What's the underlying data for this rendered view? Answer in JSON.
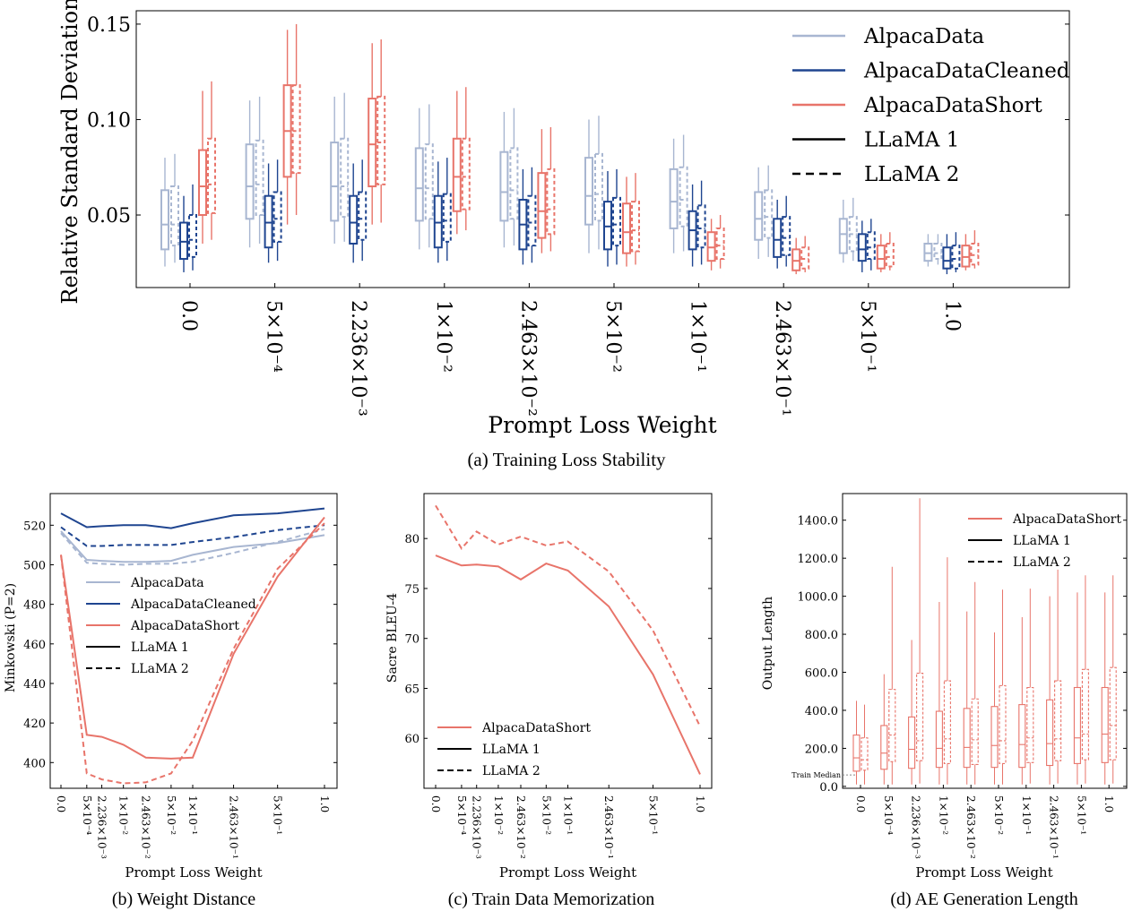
{
  "colors": {
    "AlpacaData": "#a8b6d1",
    "AlpacaDataCleaned": "#1f4590",
    "AlpacaDataShort": "#e8746a",
    "black": "#000000"
  },
  "chart_data": [
    {
      "id": "a",
      "type": "box",
      "caption": "(a) Training Loss Stability",
      "xlabel": "Prompt Loss Weight",
      "ylabel": "Relative Standard Deviation",
      "ylim": [
        0.012,
        0.157
      ],
      "yticks": [
        0.05,
        0.1,
        0.15
      ],
      "ytick_labels": [
        "0.05",
        "0.10",
        "0.15"
      ],
      "categories": [
        "0.0",
        "5×10⁻⁴",
        "2.236×10⁻³",
        "1×10⁻²",
        "2.463×10⁻²",
        "5×10⁻²",
        "1×10⁻¹",
        "2.463×10⁻¹",
        "5×10⁻¹",
        "1.0"
      ],
      "legend": [
        "AlpacaData",
        "AlpacaDataCleaned",
        "AlpacaDataShort",
        "LLaMA 1",
        "LLaMA 2"
      ],
      "series": [
        {
          "dataset": "AlpacaData",
          "model": "LLaMA 1",
          "boxes": [
            [
              0.023,
              0.032,
              0.045,
              0.063,
              0.08
            ],
            [
              0.033,
              0.048,
              0.065,
              0.087,
              0.11
            ],
            [
              0.035,
              0.047,
              0.065,
              0.088,
              0.112
            ],
            [
              0.032,
              0.047,
              0.064,
              0.085,
              0.106
            ],
            [
              0.033,
              0.047,
              0.062,
              0.083,
              0.104
            ],
            [
              0.03,
              0.045,
              0.06,
              0.08,
              0.1
            ],
            [
              0.03,
              0.043,
              0.057,
              0.074,
              0.09
            ],
            [
              0.027,
              0.037,
              0.048,
              0.062,
              0.075
            ],
            [
              0.025,
              0.03,
              0.04,
              0.048,
              0.058
            ],
            [
              0.023,
              0.026,
              0.03,
              0.035,
              0.04
            ]
          ]
        },
        {
          "dataset": "AlpacaData",
          "model": "LLaMA 2",
          "boxes": [
            [
              0.025,
              0.034,
              0.045,
              0.065,
              0.082
            ],
            [
              0.035,
              0.05,
              0.066,
              0.089,
              0.112
            ],
            [
              0.036,
              0.049,
              0.065,
              0.09,
              0.114
            ],
            [
              0.033,
              0.048,
              0.064,
              0.087,
              0.108
            ],
            [
              0.034,
              0.048,
              0.063,
              0.085,
              0.106
            ],
            [
              0.032,
              0.047,
              0.061,
              0.082,
              0.102
            ],
            [
              0.031,
              0.044,
              0.058,
              0.075,
              0.092
            ],
            [
              0.028,
              0.038,
              0.049,
              0.063,
              0.076
            ],
            [
              0.026,
              0.031,
              0.04,
              0.049,
              0.059
            ],
            [
              0.024,
              0.027,
              0.03,
              0.035,
              0.04
            ]
          ]
        },
        {
          "dataset": "AlpacaDataCleaned",
          "model": "LLaMA 1",
          "boxes": [
            [
              0.02,
              0.027,
              0.036,
              0.046,
              0.06
            ],
            [
              0.025,
              0.033,
              0.046,
              0.06,
              0.077
            ],
            [
              0.025,
              0.035,
              0.046,
              0.06,
              0.077
            ],
            [
              0.025,
              0.033,
              0.046,
              0.06,
              0.078
            ],
            [
              0.024,
              0.032,
              0.045,
              0.058,
              0.074
            ],
            [
              0.023,
              0.032,
              0.044,
              0.057,
              0.073
            ],
            [
              0.023,
              0.032,
              0.042,
              0.052,
              0.066
            ],
            [
              0.022,
              0.028,
              0.037,
              0.048,
              0.058
            ],
            [
              0.02,
              0.026,
              0.032,
              0.04,
              0.047
            ],
            [
              0.019,
              0.022,
              0.026,
              0.033,
              0.04
            ]
          ]
        },
        {
          "dataset": "AlpacaDataCleaned",
          "model": "LLaMA 2",
          "boxes": [
            [
              0.021,
              0.028,
              0.037,
              0.05,
              0.066
            ],
            [
              0.026,
              0.036,
              0.048,
              0.062,
              0.079
            ],
            [
              0.026,
              0.037,
              0.048,
              0.062,
              0.079
            ],
            [
              0.026,
              0.036,
              0.047,
              0.061,
              0.08
            ],
            [
              0.025,
              0.034,
              0.046,
              0.06,
              0.075
            ],
            [
              0.024,
              0.034,
              0.045,
              0.059,
              0.074
            ],
            [
              0.024,
              0.033,
              0.043,
              0.055,
              0.068
            ],
            [
              0.023,
              0.029,
              0.038,
              0.049,
              0.06
            ],
            [
              0.021,
              0.027,
              0.033,
              0.041,
              0.048
            ],
            [
              0.02,
              0.022,
              0.027,
              0.034,
              0.041
            ]
          ]
        },
        {
          "dataset": "AlpacaDataShort",
          "model": "LLaMA 1",
          "boxes": [
            [
              0.035,
              0.05,
              0.065,
              0.084,
              0.115
            ],
            [
              0.045,
              0.07,
              0.094,
              0.118,
              0.147
            ],
            [
              0.045,
              0.065,
              0.087,
              0.111,
              0.14
            ],
            [
              0.04,
              0.052,
              0.07,
              0.09,
              0.115
            ],
            [
              0.03,
              0.038,
              0.052,
              0.072,
              0.095
            ],
            [
              0.023,
              0.03,
              0.041,
              0.056,
              0.07
            ],
            [
              0.021,
              0.026,
              0.033,
              0.041,
              0.048
            ],
            [
              0.019,
              0.021,
              0.026,
              0.032,
              0.038
            ],
            [
              0.02,
              0.022,
              0.027,
              0.034,
              0.04
            ],
            [
              0.021,
              0.023,
              0.028,
              0.034,
              0.04
            ]
          ]
        },
        {
          "dataset": "AlpacaDataShort",
          "model": "LLaMA 2",
          "boxes": [
            [
              0.037,
              0.051,
              0.066,
              0.09,
              0.12
            ],
            [
              0.05,
              0.072,
              0.094,
              0.118,
              0.15
            ],
            [
              0.046,
              0.066,
              0.088,
              0.112,
              0.142
            ],
            [
              0.042,
              0.053,
              0.07,
              0.09,
              0.117
            ],
            [
              0.031,
              0.04,
              0.053,
              0.074,
              0.096
            ],
            [
              0.024,
              0.031,
              0.042,
              0.057,
              0.072
            ],
            [
              0.022,
              0.027,
              0.034,
              0.043,
              0.05
            ],
            [
              0.02,
              0.022,
              0.027,
              0.033,
              0.039
            ],
            [
              0.021,
              0.023,
              0.028,
              0.035,
              0.041
            ],
            [
              0.022,
              0.024,
              0.029,
              0.035,
              0.042
            ]
          ]
        }
      ]
    },
    {
      "id": "b",
      "type": "line",
      "caption": "(b) Weight Distance",
      "xlabel": "Prompt Loss Weight",
      "ylabel": "Minkowski (P=2)",
      "x": [
        0.0,
        0.0005,
        0.002236,
        0.01,
        0.02463,
        0.05,
        0.1,
        0.2463,
        0.5,
        1.0
      ],
      "x_tick_labels": [
        "0.0",
        "5×10⁻⁴",
        "2.236×10⁻³",
        "1×10⁻²",
        "2.463×10⁻²",
        "5×10⁻²",
        "1×10⁻¹",
        "2.463×10⁻¹",
        "5×10⁻¹",
        "1.0"
      ],
      "ylim": [
        387,
        536
      ],
      "yticks": [
        400,
        420,
        440,
        460,
        480,
        500,
        520
      ],
      "legend": [
        "AlpacaData",
        "AlpacaDataCleaned",
        "AlpacaDataShort",
        "LLaMA 1",
        "LLaMA 2"
      ],
      "series": [
        {
          "dataset": "AlpacaData",
          "model": "LLaMA 1",
          "values": [
            517,
            502.5,
            502,
            501.5,
            501.5,
            502,
            505,
            509,
            511,
            515
          ]
        },
        {
          "dataset": "AlpacaData",
          "model": "LLaMA 2",
          "values": [
            516,
            501,
            500.5,
            500,
            500.5,
            500.5,
            501.5,
            506,
            511.5,
            518
          ]
        },
        {
          "dataset": "AlpacaDataCleaned",
          "model": "LLaMA 1",
          "values": [
            526,
            519,
            519.5,
            520,
            520,
            518.5,
            521,
            525,
            526,
            528.5
          ]
        },
        {
          "dataset": "AlpacaDataCleaned",
          "model": "LLaMA 2",
          "values": [
            519,
            509.5,
            509.5,
            510,
            510,
            510,
            511.5,
            514,
            517.5,
            520
          ]
        },
        {
          "dataset": "AlpacaDataShort",
          "model": "LLaMA 1",
          "values": [
            505,
            414,
            413,
            409,
            402.5,
            402,
            402.5,
            455,
            494,
            524
          ]
        },
        {
          "dataset": "AlpacaDataShort",
          "model": "LLaMA 2",
          "values": [
            505,
            394.5,
            391.5,
            389.5,
            390,
            394.5,
            411,
            457.5,
            498,
            521
          ]
        }
      ]
    },
    {
      "id": "c",
      "type": "line",
      "caption": "(c) Train Data Memorization",
      "xlabel": "Prompt Loss Weight",
      "ylabel": "Sacre BLEU-4",
      "x": [
        0.0,
        0.0005,
        0.002236,
        0.01,
        0.02463,
        0.05,
        0.1,
        0.2463,
        0.5,
        1.0
      ],
      "x_tick_labels": [
        "0.0",
        "5×10⁻⁴",
        "2.236×10⁻³",
        "1×10⁻²",
        "2.463×10⁻²",
        "5×10⁻²",
        "1×10⁻¹",
        "2.463×10⁻¹",
        "5×10⁻¹",
        "1.0"
      ],
      "ylim": [
        55.0,
        84.5
      ],
      "yticks": [
        60,
        65,
        70,
        75,
        80
      ],
      "legend": [
        "AlpacaDataShort",
        "LLaMA 1",
        "LLaMA 2"
      ],
      "series": [
        {
          "dataset": "AlpacaDataShort",
          "model": "LLaMA 1",
          "values": [
            78.3,
            77.3,
            77.4,
            77.2,
            75.9,
            77.5,
            76.8,
            73.2,
            66.4,
            56.4
          ]
        },
        {
          "dataset": "AlpacaDataShort",
          "model": "LLaMA 2",
          "values": [
            83.3,
            79.0,
            80.7,
            79.4,
            80.2,
            79.3,
            79.7,
            76.7,
            70.8,
            61.2
          ]
        }
      ]
    },
    {
      "id": "d",
      "type": "box",
      "caption": "(d) AE Generation Length",
      "xlabel": "Prompt Loss Weight",
      "ylabel": "Output Length",
      "ylim": [
        -10,
        1540
      ],
      "yticks": [
        0,
        200,
        400,
        600,
        800,
        1000,
        1200,
        1400
      ],
      "ytick_labels": [
        "0.0",
        "200.0",
        "400.0",
        "600.0",
        "800.0",
        "1000.0",
        "1200.0",
        "1400.0"
      ],
      "annotation": "Train Median",
      "train_median": 60,
      "categories": [
        "0.0",
        "5×10⁻⁴",
        "2.236×10⁻³",
        "1×10⁻²",
        "2.463×10⁻²",
        "5×10⁻²",
        "1×10⁻¹",
        "2.463×10⁻¹",
        "5×10⁻¹",
        "1.0"
      ],
      "legend": [
        "AlpacaDataShort",
        "LLaMA 1",
        "LLaMA 2"
      ],
      "series": [
        {
          "dataset": "AlpacaDataShort",
          "model": "LLaMA 1",
          "boxes": [
            [
              10,
              80,
              150,
              270,
              450
            ],
            [
              10,
              90,
              175,
              320,
              590
            ],
            [
              10,
              95,
              195,
              365,
              770
            ],
            [
              10,
              100,
              200,
              395,
              970
            ],
            [
              10,
              100,
              205,
              410,
              920
            ],
            [
              10,
              100,
              215,
              420,
              810
            ],
            [
              10,
              100,
              220,
              430,
              890
            ],
            [
              10,
              110,
              225,
              455,
              1000
            ],
            [
              10,
              120,
              255,
              520,
              1020
            ],
            [
              10,
              125,
              275,
              520,
              1020
            ]
          ]
        },
        {
          "dataset": "AlpacaDataShort",
          "model": "LLaMA 2",
          "boxes": [
            [
              10,
              85,
              140,
              255,
              430
            ],
            [
              10,
              130,
              270,
              510,
              1155
            ],
            [
              15,
              135,
              240,
              595,
              1515
            ],
            [
              10,
              120,
              250,
              555,
              1205
            ],
            [
              10,
              115,
              245,
              460,
              1075
            ],
            [
              10,
              120,
              240,
              530,
              1035
            ],
            [
              15,
              125,
              255,
              520,
              1040
            ],
            [
              15,
              135,
              250,
              555,
              1140
            ],
            [
              15,
              140,
              275,
              615,
              1110
            ],
            [
              15,
              140,
              320,
              625,
              1110
            ]
          ]
        }
      ]
    }
  ]
}
